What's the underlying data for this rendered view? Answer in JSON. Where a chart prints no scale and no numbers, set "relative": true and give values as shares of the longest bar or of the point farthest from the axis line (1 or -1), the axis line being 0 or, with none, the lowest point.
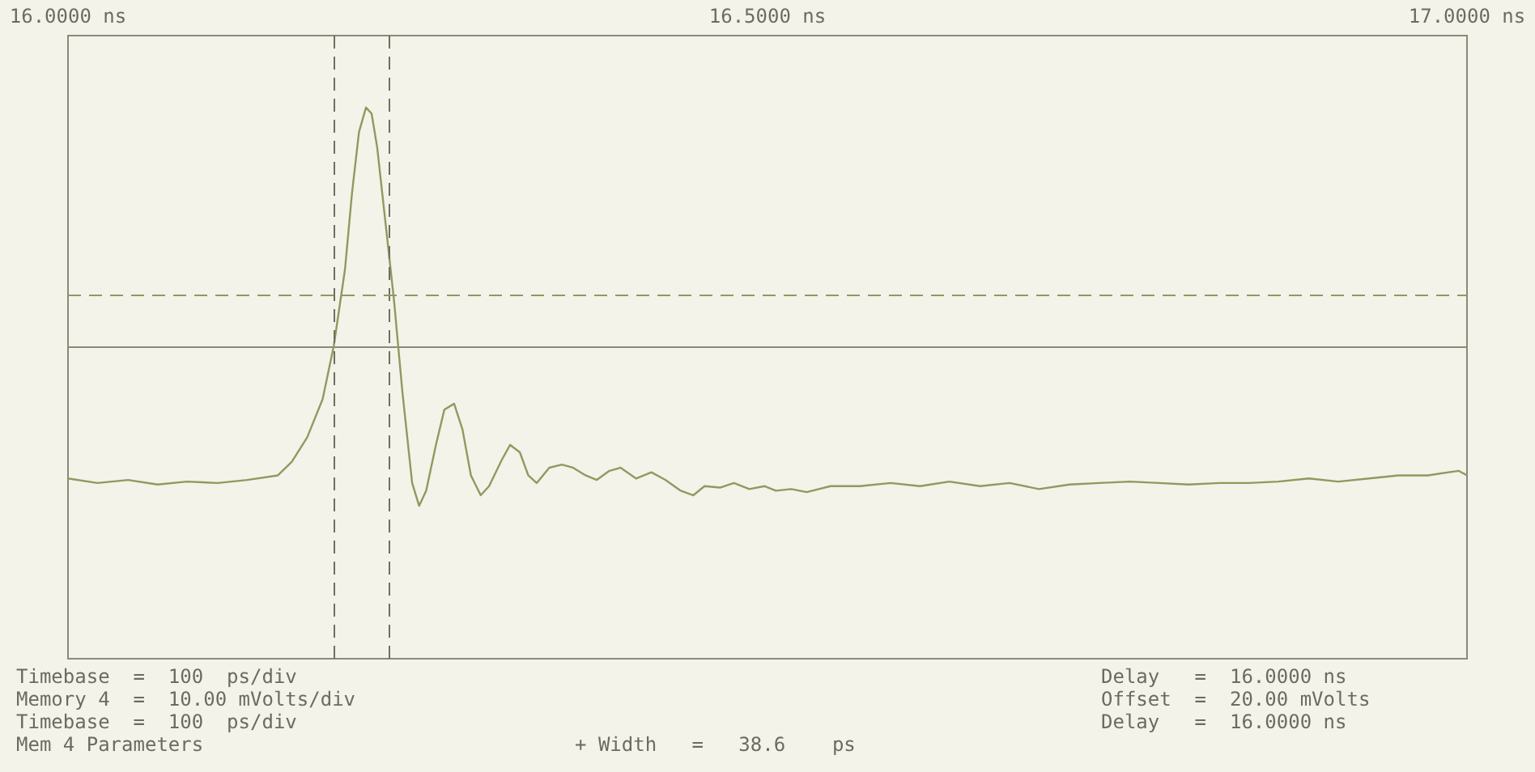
{
  "chart_data": {
    "type": "line",
    "relative": true,
    "xlim": [
      16.0,
      17.0
    ],
    "xticks": [
      {
        "value": 16.0,
        "label": "16.0000 ns"
      },
      {
        "value": 16.5,
        "label": "16.5000 ns"
      },
      {
        "value": 17.0,
        "label": "17.0000 ns"
      }
    ],
    "grid": false,
    "marker": "none",
    "line_style": "solid",
    "series": [
      {
        "color": "#8f9a5e",
        "x": [
          16.0,
          16.021,
          16.043,
          16.064,
          16.085,
          16.107,
          16.128,
          16.15,
          16.16,
          16.171,
          16.182,
          16.19,
          16.198,
          16.203,
          16.208,
          16.213,
          16.217,
          16.221,
          16.227,
          16.233,
          16.239,
          16.246,
          16.251,
          16.256,
          16.263,
          16.269,
          16.276,
          16.282,
          16.288,
          16.295,
          16.301,
          16.31,
          16.316,
          16.323,
          16.329,
          16.335,
          16.344,
          16.353,
          16.361,
          16.37,
          16.378,
          16.387,
          16.395,
          16.406,
          16.417,
          16.427,
          16.438,
          16.447,
          16.455,
          16.466,
          16.476,
          16.487,
          16.498,
          16.506,
          16.517,
          16.528,
          16.545,
          16.566,
          16.588,
          16.609,
          16.63,
          16.652,
          16.673,
          16.694,
          16.716,
          16.737,
          16.759,
          16.78,
          16.801,
          16.823,
          16.844,
          16.865,
          16.887,
          16.908,
          16.93,
          16.951,
          16.972,
          16.994,
          17.0
        ],
        "values": [
          -0.548,
          -0.567,
          -0.554,
          -0.573,
          -0.561,
          -0.567,
          -0.554,
          -0.535,
          -0.478,
          -0.376,
          -0.217,
          0.006,
          0.325,
          0.643,
          0.898,
          1.0,
          0.975,
          0.834,
          0.516,
          0.197,
          -0.185,
          -0.567,
          -0.662,
          -0.599,
          -0.408,
          -0.261,
          -0.236,
          -0.344,
          -0.535,
          -0.618,
          -0.58,
          -0.471,
          -0.408,
          -0.439,
          -0.535,
          -0.567,
          -0.503,
          -0.49,
          -0.503,
          -0.535,
          -0.554,
          -0.516,
          -0.503,
          -0.548,
          -0.522,
          -0.554,
          -0.599,
          -0.618,
          -0.58,
          -0.586,
          -0.567,
          -0.592,
          -0.58,
          -0.599,
          -0.592,
          -0.605,
          -0.58,
          -0.58,
          -0.567,
          -0.58,
          -0.561,
          -0.58,
          -0.567,
          -0.592,
          -0.573,
          -0.567,
          -0.561,
          -0.567,
          -0.573,
          -0.567,
          -0.567,
          -0.561,
          -0.548,
          -0.561,
          -0.548,
          -0.535,
          -0.535,
          -0.516,
          -0.535
        ]
      }
    ],
    "ref_lines": [
      {
        "axis": "x",
        "value": 16.194,
        "line_style": "dashed",
        "color": "#6f6f60"
      },
      {
        "axis": "x",
        "value": 16.23,
        "line_style": "dashed",
        "color": "#6f6f60"
      },
      {
        "axis": "y",
        "value": 0.223,
        "line_style": "dashed",
        "color": "#8f9a5e"
      }
    ],
    "annotations": [
      "Timebase  =  100  ps/div",
      "Memory 4  =  10.00 mVolts/div",
      "Timebase  =  100  ps/div",
      "Mem 4 Parameters",
      "+ Width   =   38.6    ps",
      "Delay   =  16.0000 ns",
      "Offset  =  20.00 mVolts",
      "Delay   =  16.0000 ns"
    ]
  }
}
